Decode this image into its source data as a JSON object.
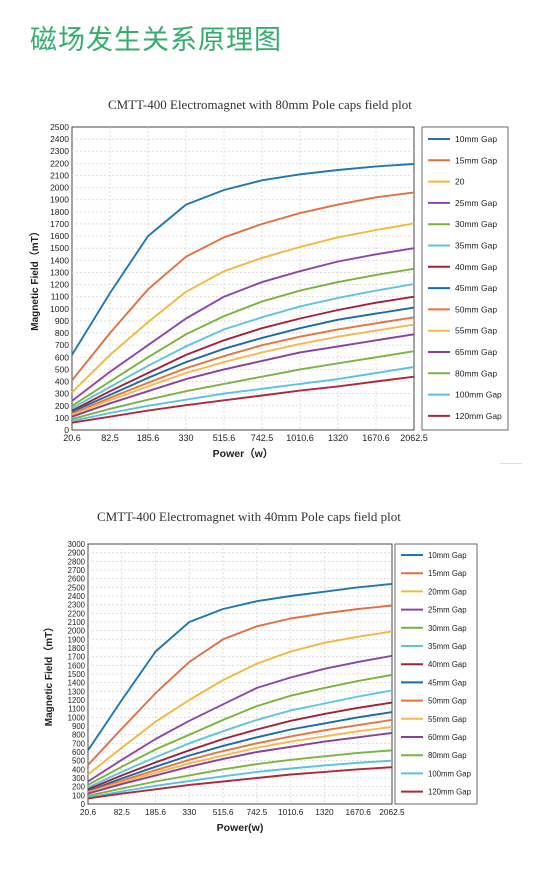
{
  "page": {
    "heading": "磁场发生关系原理图"
  },
  "chart_data": [
    {
      "type": "line",
      "title": "CMTT-400 Electromagnet with 80mm Pole caps field plot",
      "xlabel": "Power（w）",
      "ylabel": "Magnetic Field（mT）",
      "x_ticks": [
        "20.6",
        "82.5",
        "185.6",
        "330",
        "515.6",
        "742.5",
        "1010.6",
        "1320",
        "1670.6",
        "2062.5"
      ],
      "ylim": [
        0,
        2500
      ],
      "y_ticks": [
        0,
        100,
        200,
        300,
        400,
        500,
        600,
        700,
        800,
        900,
        1000,
        1100,
        1200,
        1300,
        1400,
        1500,
        1600,
        1700,
        1800,
        1900,
        2000,
        2100,
        2200,
        2300,
        2400,
        2500
      ],
      "grid": true,
      "legend": "right",
      "series": [
        {
          "name": "10mm Gap",
          "color": "#1f77b4",
          "values": [
            620,
            1130,
            1600,
            1860,
            1980,
            2060,
            2110,
            2145,
            2175,
            2195
          ]
        },
        {
          "name": "15mm Gap",
          "color": "#e07040",
          "values": [
            410,
            800,
            1160,
            1430,
            1590,
            1700,
            1790,
            1860,
            1920,
            1960
          ]
        },
        {
          "name": "20",
          "color": "#f5b73b",
          "values": [
            310,
            620,
            890,
            1140,
            1310,
            1420,
            1510,
            1590,
            1650,
            1705
          ]
        },
        {
          "name": "25mm Gap",
          "color": "#8e44ad",
          "values": [
            240,
            480,
            700,
            920,
            1100,
            1220,
            1310,
            1390,
            1450,
            1500
          ]
        },
        {
          "name": "30mm Gap",
          "color": "#79b33a",
          "values": [
            200,
            400,
            600,
            790,
            940,
            1060,
            1150,
            1220,
            1280,
            1330
          ]
        },
        {
          "name": "35mm Gap",
          "color": "#5fc4e0",
          "values": [
            180,
            355,
            530,
            690,
            830,
            930,
            1020,
            1090,
            1150,
            1205
          ]
        },
        {
          "name": "40mm Gap",
          "color": "#a3203a",
          "values": [
            160,
            320,
            470,
            620,
            740,
            840,
            920,
            990,
            1050,
            1100
          ]
        },
        {
          "name": "45mm Gap",
          "color": "#1b6aa8",
          "values": [
            150,
            290,
            430,
            560,
            670,
            760,
            840,
            910,
            960,
            1010
          ]
        },
        {
          "name": "50mm Gap",
          "color": "#e8743b",
          "values": [
            135,
            265,
            390,
            510,
            610,
            700,
            770,
            830,
            880,
            930
          ]
        },
        {
          "name": "55mm Gap",
          "color": "#f7b84b",
          "values": [
            125,
            245,
            360,
            470,
            560,
            640,
            710,
            770,
            820,
            870
          ]
        },
        {
          "name": "65mm Gap",
          "color": "#8a3fa0",
          "values": [
            110,
            220,
            320,
            420,
            500,
            570,
            640,
            690,
            740,
            790
          ]
        },
        {
          "name": "80mm Gap",
          "color": "#7cb342",
          "values": [
            90,
            175,
            250,
            320,
            380,
            440,
            500,
            550,
            600,
            650
          ]
        },
        {
          "name": "100mm Gap",
          "color": "#5bc0e8",
          "values": [
            75,
            140,
            200,
            250,
            300,
            340,
            380,
            420,
            470,
            520
          ]
        },
        {
          "name": "120mm Gap",
          "color": "#b0283c",
          "values": [
            60,
            110,
            160,
            205,
            245,
            285,
            325,
            360,
            400,
            440
          ]
        }
      ]
    },
    {
      "type": "line",
      "title": "CMTT-400 Electromagnet with 40mm Pole caps field plot",
      "xlabel": "Power(w)",
      "ylabel": "Magnetic Field（mT）",
      "x_ticks": [
        "20.6",
        "82.5",
        "185.6",
        "330",
        "515.6",
        "742.5",
        "1010.6",
        "1320",
        "1670.6",
        "2062.5"
      ],
      "ylim": [
        0,
        3000
      ],
      "y_ticks": [
        0,
        100,
        200,
        300,
        400,
        500,
        600,
        700,
        800,
        900,
        1000,
        1100,
        1200,
        1300,
        1400,
        1500,
        1600,
        1700,
        1800,
        1900,
        2000,
        2100,
        2200,
        2300,
        2400,
        2500,
        2600,
        2700,
        2800,
        2900,
        3000
      ],
      "grid": true,
      "legend": "right",
      "series": [
        {
          "name": "10mm Gap",
          "color": "#1f77b4",
          "values": [
            620,
            1200,
            1760,
            2100,
            2250,
            2340,
            2400,
            2450,
            2500,
            2540
          ]
        },
        {
          "name": "15mm Gap",
          "color": "#e07040",
          "values": [
            450,
            870,
            1280,
            1640,
            1900,
            2050,
            2140,
            2200,
            2250,
            2290
          ]
        },
        {
          "name": "20mm Gap",
          "color": "#f5b73b",
          "values": [
            340,
            650,
            950,
            1200,
            1430,
            1620,
            1760,
            1860,
            1930,
            1990
          ]
        },
        {
          "name": "25mm Gap",
          "color": "#8e44ad",
          "values": [
            260,
            510,
            750,
            960,
            1150,
            1340,
            1460,
            1560,
            1640,
            1710
          ]
        },
        {
          "name": "30mm Gap",
          "color": "#79b33a",
          "values": [
            220,
            430,
            630,
            800,
            970,
            1130,
            1250,
            1340,
            1420,
            1490
          ]
        },
        {
          "name": "35mm Gap",
          "color": "#5fc4e0",
          "values": [
            190,
            370,
            540,
            700,
            840,
            970,
            1080,
            1160,
            1240,
            1310
          ]
        },
        {
          "name": "40mm Gap",
          "color": "#a3203a",
          "values": [
            170,
            330,
            480,
            620,
            750,
            860,
            960,
            1040,
            1110,
            1170
          ]
        },
        {
          "name": "45mm Gap",
          "color": "#1b6aa8",
          "values": [
            150,
            295,
            430,
            560,
            670,
            770,
            860,
            930,
            1000,
            1060
          ]
        },
        {
          "name": "50mm Gap",
          "color": "#e8743b",
          "values": [
            140,
            270,
            390,
            510,
            610,
            700,
            780,
            850,
            910,
            970
          ]
        },
        {
          "name": "55mm Gap",
          "color": "#f7b84b",
          "values": [
            130,
            250,
            360,
            470,
            560,
            650,
            720,
            780,
            840,
            890
          ]
        },
        {
          "name": "60mm Gap",
          "color": "#8a3fa0",
          "values": [
            120,
            230,
            330,
            430,
            520,
            600,
            660,
            720,
            770,
            820
          ]
        },
        {
          "name": "80mm Gap",
          "color": "#7cb342",
          "values": [
            95,
            180,
            260,
            330,
            400,
            460,
            510,
            550,
            590,
            620
          ]
        },
        {
          "name": "100mm Gap",
          "color": "#5bc0e8",
          "values": [
            75,
            145,
            210,
            265,
            320,
            370,
            410,
            445,
            475,
            500
          ]
        },
        {
          "name": "120mm Gap",
          "color": "#b0283c",
          "values": [
            65,
            120,
            170,
            220,
            260,
            300,
            340,
            370,
            400,
            425
          ]
        }
      ]
    }
  ]
}
